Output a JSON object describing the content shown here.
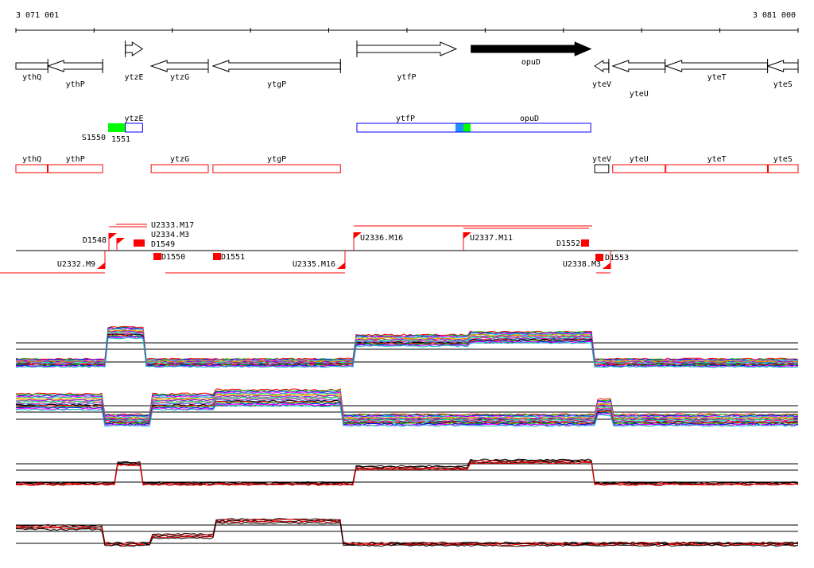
{
  "axis": {
    "start_label": "3 071 001",
    "end_label": "3 081 000",
    "start": 3071001,
    "end": 3081000,
    "tick_step": 1000
  },
  "colors": {
    "gene": "#000000",
    "operon": "#0000ff",
    "transcript": "#ff0000",
    "green": "#00ff00",
    "blue": "#1e90ff",
    "feature": "#ff0000"
  },
  "genes": [
    {
      "name": "ythQ",
      "start": 3071001,
      "end": 3071410,
      "strand": "-"
    },
    {
      "name": "ythP",
      "start": 3071410,
      "end": 3072110,
      "strand": "-"
    },
    {
      "name": "ytzE",
      "start": 3072400,
      "end": 3072620,
      "strand": "+"
    },
    {
      "name": "ytzG",
      "start": 3072730,
      "end": 3073460,
      "strand": "-"
    },
    {
      "name": "ytgP",
      "start": 3073520,
      "end": 3075150,
      "strand": "-"
    },
    {
      "name": "ytfP",
      "start": 3075360,
      "end": 3076630,
      "strand": "+"
    },
    {
      "name": "opuD",
      "start": 3076820,
      "end": 3078350,
      "strand": "+",
      "highlight": true
    },
    {
      "name": "yteV",
      "start": 3078400,
      "end": 3078580,
      "strand": "-"
    },
    {
      "name": "yteU",
      "start": 3078630,
      "end": 3079300,
      "strand": "-"
    },
    {
      "name": "yteT",
      "start": 3079310,
      "end": 3080610,
      "strand": "-"
    },
    {
      "name": "yteS",
      "start": 3080610,
      "end": 3081000,
      "strand": "-"
    }
  ],
  "operons": [
    {
      "name": "ytzE",
      "start": 3072400,
      "end": 3072620
    },
    {
      "name": "ytfP",
      "label2": "opuD",
      "start": 3075360,
      "end": 3078350
    }
  ],
  "operon_labels": {
    "s1": "S1550",
    "s2": "1551"
  },
  "transcripts": [
    {
      "name": "ythQ",
      "start": 3071001,
      "end": 3071410
    },
    {
      "name": "ythP",
      "start": 3071410,
      "end": 3072110
    },
    {
      "name": "ytzG",
      "start": 3072730,
      "end": 3073460
    },
    {
      "name": "ytgP",
      "start": 3073520,
      "end": 3075150
    },
    {
      "name": "yteV",
      "start": 3078400,
      "end": 3078580
    },
    {
      "name": "yteU",
      "start": 3078630,
      "end": 3079300
    },
    {
      "name": "yteT",
      "start": 3079310,
      "end": 3080610
    },
    {
      "name": "yteS",
      "start": 3080610,
      "end": 3081000
    }
  ],
  "features": {
    "upstream_above": [
      "U2333.M17",
      "U2334.M3",
      "U2336.M16",
      "U2337.M11"
    ],
    "upstream_below": [
      "U2332.M9",
      "U2335.M16",
      "U2338.M3"
    ],
    "downstream": [
      "D1548",
      "D1549",
      "D1550",
      "D1551",
      "D1552",
      "D1553"
    ]
  }
}
